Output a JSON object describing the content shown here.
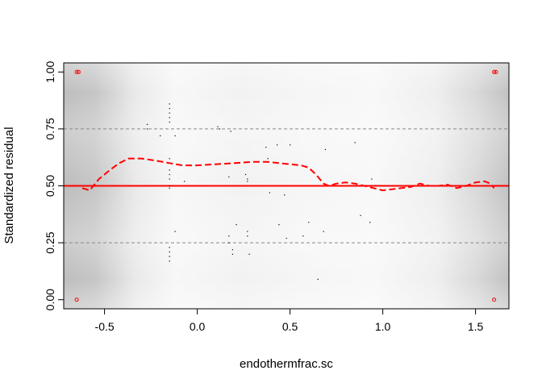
{
  "chart_data": {
    "type": "scatter",
    "title": "",
    "xlabel": "endothermfrac.sc",
    "ylabel": "Standardized residual",
    "xlim": [
      -0.72,
      1.68
    ],
    "ylim": [
      -0.04,
      1.04
    ],
    "x_ticks": [
      "-0.5",
      "0.0",
      "0.5",
      "1.0",
      "1.5"
    ],
    "y_ticks": [
      "0.00",
      "0.25",
      "0.50",
      "0.75",
      "1.00"
    ],
    "x_tick_values": [
      -0.5,
      0.0,
      0.5,
      1.0,
      1.5
    ],
    "y_tick_values": [
      0.0,
      0.25,
      0.5,
      0.75,
      1.0
    ],
    "grid": false,
    "reference_lines": [
      {
        "y": 0.25,
        "style": "dashed",
        "color": "#888888"
      },
      {
        "y": 0.5,
        "style": "solid",
        "color": "#ff0000"
      },
      {
        "y": 0.75,
        "style": "dashed",
        "color": "#888888"
      }
    ],
    "background_density_shading": true,
    "points": [
      [
        -0.65,
        1.0
      ],
      [
        -0.64,
        1.0
      ],
      [
        -0.65,
        0.0
      ],
      [
        1.6,
        1.0
      ],
      [
        1.61,
        1.0
      ],
      [
        1.6,
        0.0
      ],
      [
        -0.27,
        0.77
      ],
      [
        -0.27,
        0.75
      ],
      [
        -0.2,
        0.72
      ],
      [
        -0.15,
        0.86
      ],
      [
        -0.15,
        0.84
      ],
      [
        -0.15,
        0.82
      ],
      [
        -0.15,
        0.8
      ],
      [
        -0.15,
        0.78
      ],
      [
        -0.15,
        0.62
      ],
      [
        -0.15,
        0.57
      ],
      [
        -0.15,
        0.55
      ],
      [
        -0.15,
        0.53
      ],
      [
        -0.15,
        0.5
      ],
      [
        -0.15,
        0.49
      ],
      [
        -0.15,
        0.23
      ],
      [
        -0.15,
        0.21
      ],
      [
        -0.15,
        0.19
      ],
      [
        -0.15,
        0.17
      ],
      [
        -0.12,
        0.72
      ],
      [
        -0.12,
        0.3
      ],
      [
        -0.07,
        0.52
      ],
      [
        0.11,
        0.76
      ],
      [
        0.12,
        0.75
      ],
      [
        0.18,
        0.74
      ],
      [
        0.17,
        0.54
      ],
      [
        0.17,
        0.28
      ],
      [
        0.17,
        0.25
      ],
      [
        0.19,
        0.22
      ],
      [
        0.19,
        0.2
      ],
      [
        0.21,
        0.33
      ],
      [
        0.26,
        0.55
      ],
      [
        0.27,
        0.53
      ],
      [
        0.27,
        0.52
      ],
      [
        0.27,
        0.3
      ],
      [
        0.27,
        0.28
      ],
      [
        0.28,
        0.2
      ],
      [
        0.37,
        0.67
      ],
      [
        0.38,
        0.62
      ],
      [
        0.39,
        0.47
      ],
      [
        0.43,
        0.68
      ],
      [
        0.44,
        0.33
      ],
      [
        0.47,
        0.46
      ],
      [
        0.48,
        0.27
      ],
      [
        0.5,
        0.68
      ],
      [
        0.57,
        0.28
      ],
      [
        0.6,
        0.34
      ],
      [
        0.65,
        0.09
      ],
      [
        0.68,
        0.3
      ],
      [
        0.69,
        0.66
      ],
      [
        0.85,
        0.69
      ],
      [
        0.88,
        0.37
      ],
      [
        0.93,
        0.34
      ],
      [
        0.94,
        0.53
      ]
    ],
    "series": [
      {
        "type": "smooth",
        "style": "dashed",
        "color": "#ff0000",
        "x": [
          -0.62,
          -0.58,
          -0.53,
          -0.47,
          -0.42,
          -0.37,
          -0.3,
          -0.22,
          -0.15,
          -0.08,
          0.0,
          0.1,
          0.2,
          0.3,
          0.38,
          0.44,
          0.5,
          0.56,
          0.6,
          0.64,
          0.68,
          0.71,
          0.75,
          0.8,
          0.85,
          0.9,
          0.95,
          1.0,
          1.05,
          1.1,
          1.15,
          1.2,
          1.25,
          1.3,
          1.35,
          1.4,
          1.45,
          1.5,
          1.55,
          1.58,
          1.6
        ],
        "y": [
          0.49,
          0.48,
          0.53,
          0.57,
          0.6,
          0.62,
          0.62,
          0.61,
          0.6,
          0.59,
          0.59,
          0.595,
          0.6,
          0.605,
          0.605,
          0.6,
          0.595,
          0.59,
          0.58,
          0.55,
          0.51,
          0.5,
          0.51,
          0.515,
          0.51,
          0.5,
          0.49,
          0.48,
          0.485,
          0.49,
          0.495,
          0.51,
          0.5,
          0.5,
          0.505,
          0.49,
          0.5,
          0.515,
          0.52,
          0.51,
          0.49
        ]
      }
    ]
  }
}
